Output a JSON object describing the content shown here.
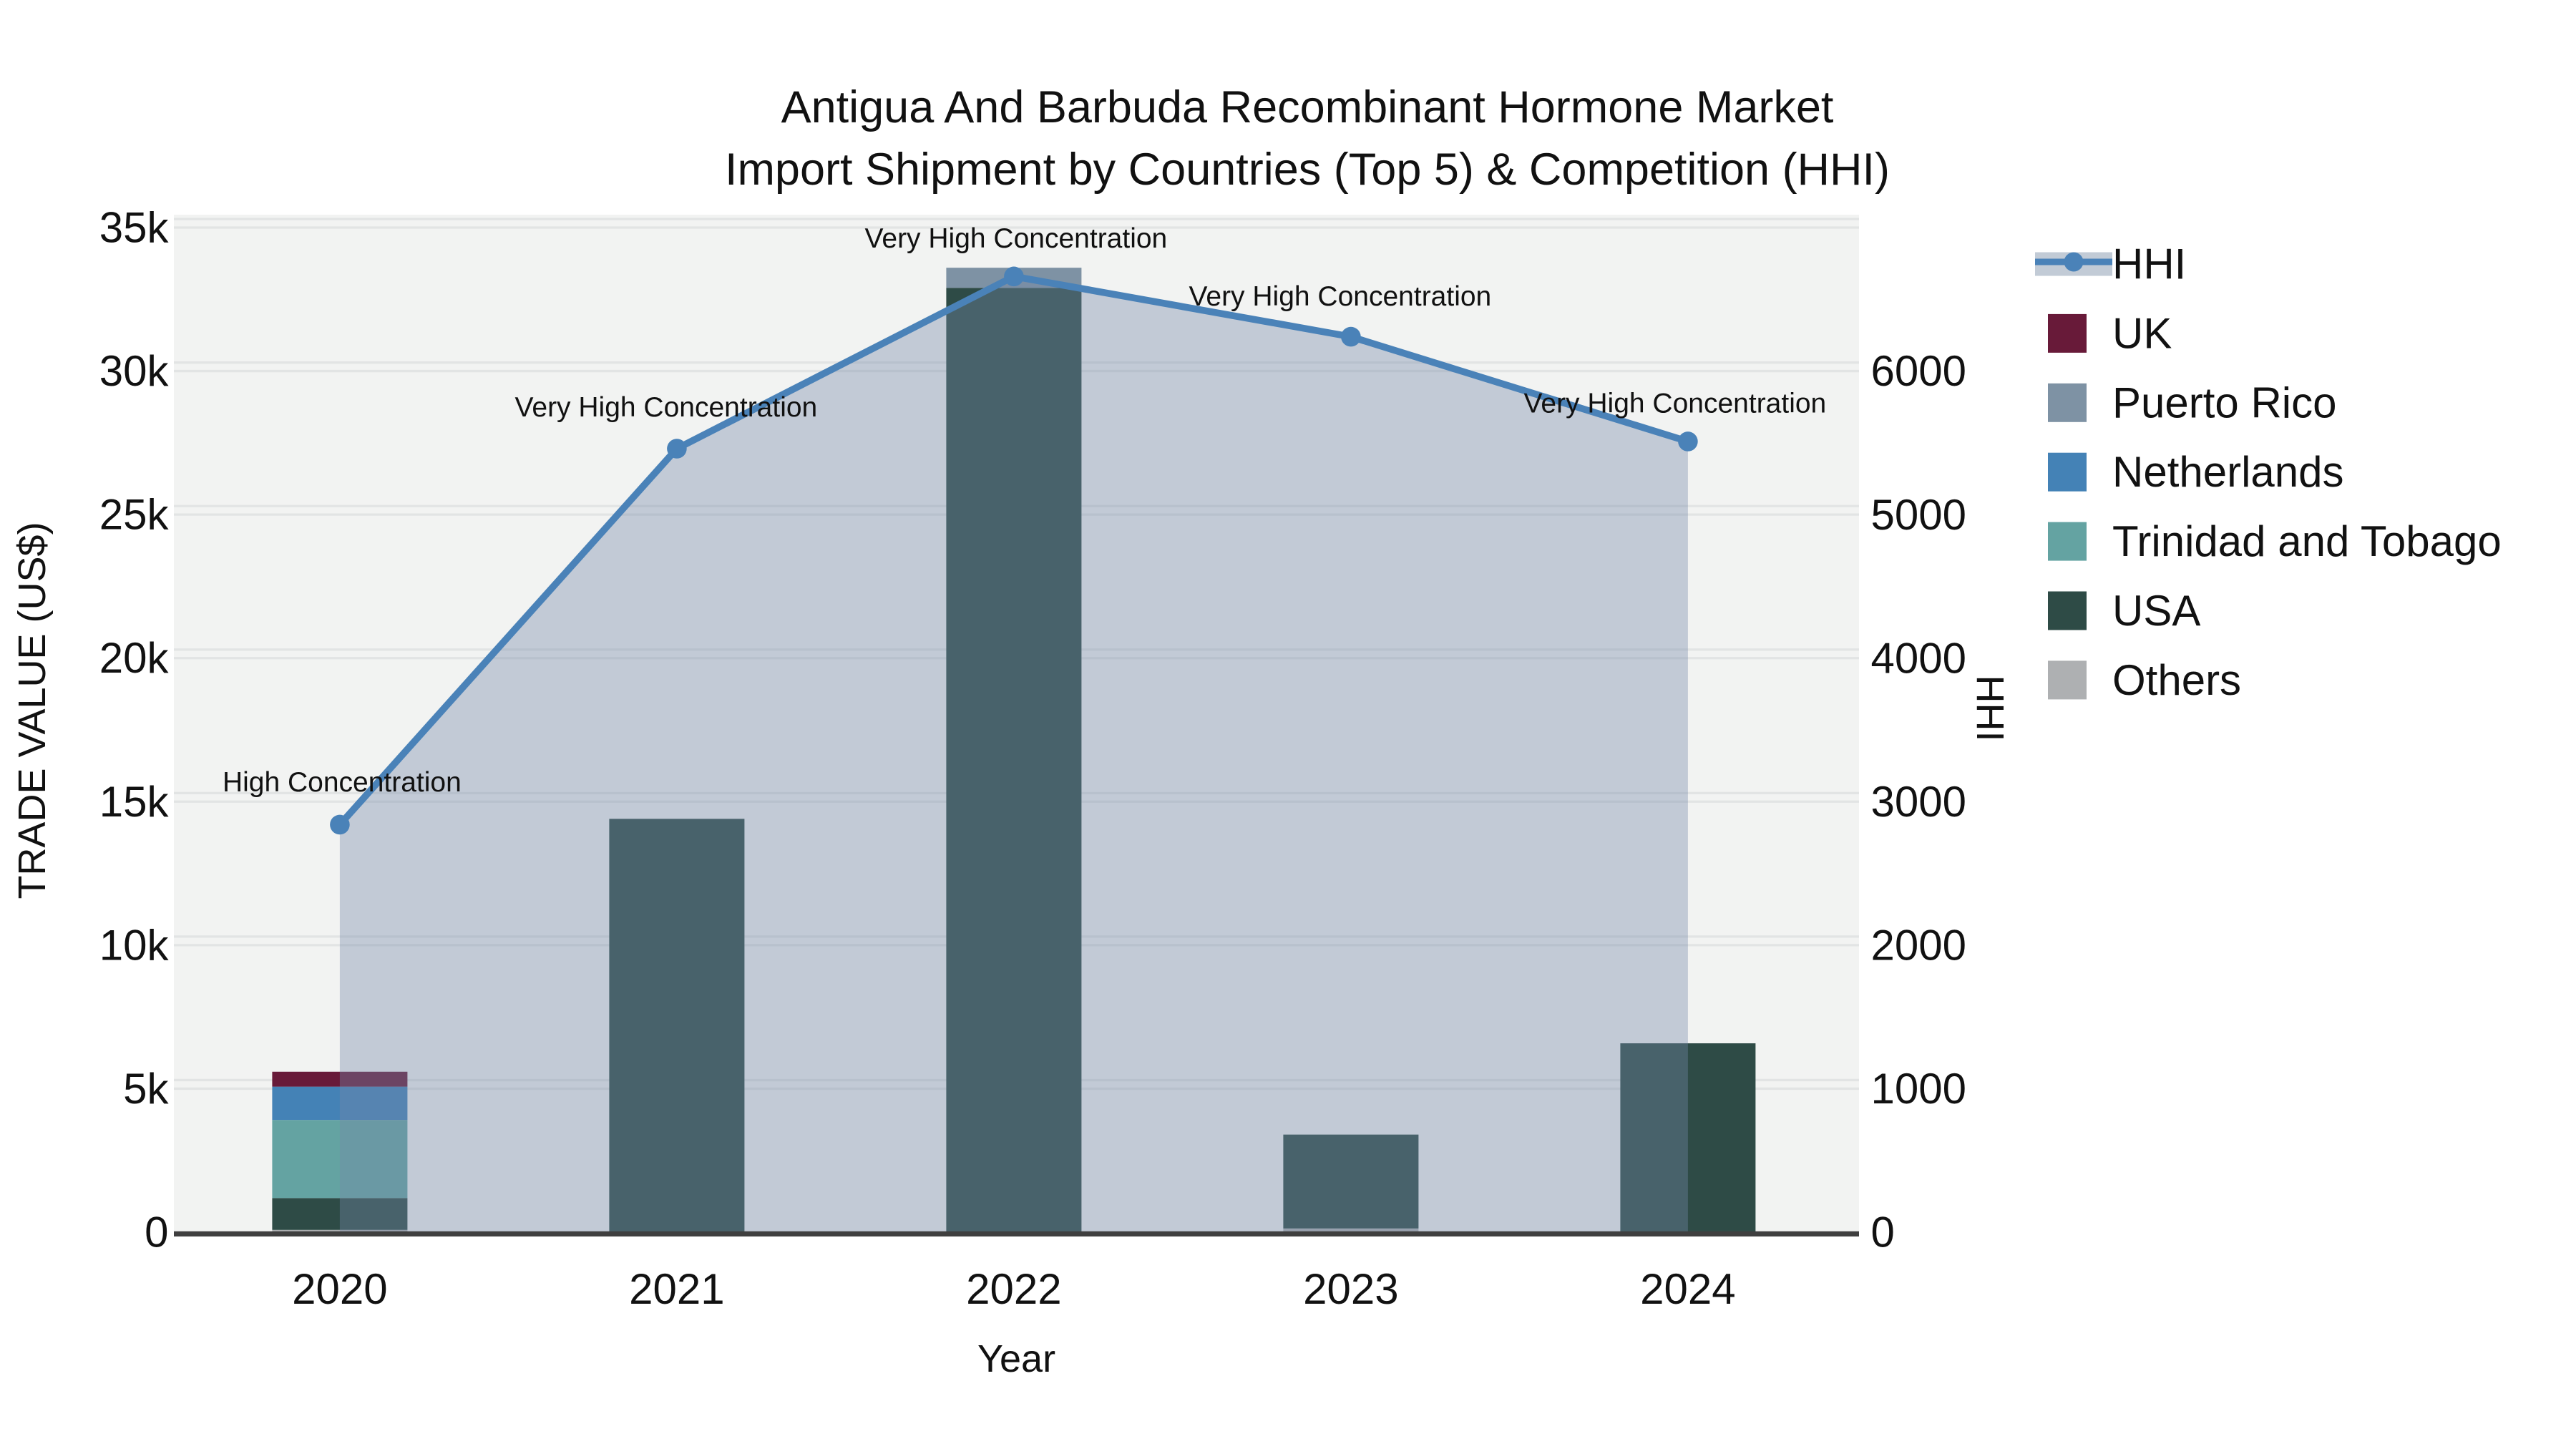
{
  "title": {
    "line1": "Antigua And Barbuda Recombinant Hormone Market",
    "line2": "Import Shipment by Countries (Top 5) & Competition (HHI)"
  },
  "colors": {
    "paper_bg": "#ffffff",
    "plot_bg": "#f2f3f2",
    "grid": "#e2e4e4",
    "axis_line": "#3f3f3f",
    "text": "#111111",
    "hhi_line": "#4a82b8",
    "hhi_area_fill": "rgba(116,136,168,0.38)",
    "hhi_legend_band": "#c2cbd6",
    "UK": "#681a39",
    "Puerto Rico": "#7e92a4",
    "Netherlands": "#4482b6",
    "Trinidad and Tobago": "#64a3a2",
    "USA": "#2e4b46",
    "Others": "#aeb0b2"
  },
  "chart_data": {
    "type": "combo: stacked bar (left axis) + line with area fill (right axis)",
    "categories": [
      "2020",
      "2021",
      "2022",
      "2023",
      "2024"
    ],
    "xlabel": "Year",
    "ylabel": "TRADE VALUE (US$)",
    "y2label": "HHI",
    "ylim": [
      0,
      36750
    ],
    "y2lim": [
      0,
      7350
    ],
    "grid": true,
    "legend_position": "right-top",
    "yticks": {
      "values": [
        0,
        5000,
        10000,
        15000,
        20000,
        25000,
        30000,
        35000
      ],
      "labels": [
        "0",
        "5k",
        "10k",
        "15k",
        "20k",
        "25k",
        "30k",
        "35k"
      ]
    },
    "y2ticks": {
      "values": [
        0,
        1000,
        2000,
        3000,
        4000,
        5000,
        6000
      ],
      "labels": [
        "0",
        "1000",
        "2000",
        "3000",
        "4000",
        "5000",
        "6000"
      ]
    },
    "bar_series_stack_bottom_to_top": [
      {
        "name": "Others",
        "values": [
          80,
          0,
          0,
          130,
          0
        ]
      },
      {
        "name": "USA",
        "values": [
          1110,
          14400,
          32900,
          3270,
          6580
        ]
      },
      {
        "name": "Trinidad and Tobago",
        "values": [
          2720,
          0,
          0,
          0,
          0
        ]
      },
      {
        "name": "Netherlands",
        "values": [
          1160,
          0,
          0,
          0,
          0
        ]
      },
      {
        "name": "Puerto Rico",
        "values": [
          0,
          0,
          700,
          0,
          0
        ]
      },
      {
        "name": "UK",
        "values": [
          520,
          0,
          0,
          0,
          0
        ]
      }
    ],
    "hhi_series": {
      "name": "HHI",
      "values": [
        2840,
        5460,
        6660,
        6240,
        5510
      ]
    },
    "point_annotations": [
      "High Concentration",
      "Very High Concentration",
      "Very High Concentration",
      "Very High Concentration",
      "Very High Concentration"
    ],
    "legend": [
      "HHI",
      "UK",
      "Puerto Rico",
      "Netherlands",
      "Trinidad and Tobago",
      "USA",
      "Others"
    ]
  }
}
